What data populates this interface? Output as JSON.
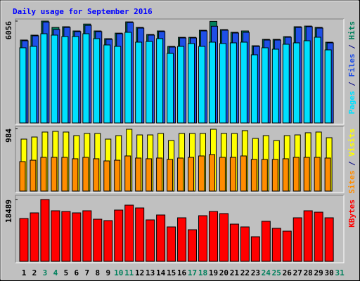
{
  "chart_data": [
    {
      "type": "bar",
      "title": "Daily usage for September 2016",
      "ylim": [
        0,
        6056
      ],
      "yticks": [
        6056
      ],
      "legend_separator": " / ",
      "series": [
        {
          "name": "Hits",
          "color": "#00805c",
          "values": [
            4930,
            5220,
            6056,
            5680,
            5720,
            5470,
            5880,
            5470,
            5010,
            5340,
            6010,
            5680,
            5260,
            5470,
            4550,
            5090,
            5090,
            5510,
            6040,
            5550,
            5390,
            5470,
            4590,
            4970,
            4970,
            5130,
            5720,
            5760,
            5680,
            4800,
            null
          ]
        },
        {
          "name": "Files",
          "color": "#1f4fe6",
          "values": [
            4887,
            5179,
            6000,
            5555,
            5680,
            5430,
            5800,
            5430,
            4970,
            5304,
            5972,
            5638,
            5221,
            5430,
            4511,
            5054,
            5054,
            5472,
            5750,
            5513,
            5346,
            5388,
            4553,
            4928,
            4928,
            5095,
            5680,
            5722,
            5638,
            4761,
            null
          ]
        },
        {
          "name": "Pages",
          "color": "#00e0ff",
          "values": [
            4469,
            4553,
            5304,
            5221,
            5137,
            5137,
            5304,
            5012,
            4636,
            4553,
            5388,
            4803,
            4845,
            5012,
            4135,
            4553,
            4720,
            4553,
            4803,
            4720,
            4761,
            4803,
            4051,
            4469,
            4385,
            4678,
            4761,
            4886,
            5095,
            4343,
            null
          ]
        }
      ]
    },
    {
      "type": "bar",
      "ylim": [
        0,
        984
      ],
      "yticks": [
        984
      ],
      "legend_separator": " / ",
      "series": [
        {
          "name": "Visits",
          "color": "#ffff00",
          "values": [
            818,
            851,
            929,
            940,
            929,
            873,
            907,
            907,
            818,
            873,
            973,
            884,
            884,
            907,
            796,
            907,
            907,
            907,
            973,
            907,
            907,
            951,
            829,
            873,
            796,
            873,
            884,
            918,
            929,
            840,
            null
          ]
        },
        {
          "name": "Sites",
          "color": "#ff8c00",
          "values": [
            464,
            486,
            531,
            531,
            531,
            509,
            531,
            509,
            475,
            486,
            553,
            520,
            509,
            520,
            498,
            520,
            531,
            553,
            575,
            531,
            531,
            553,
            498,
            498,
            498,
            509,
            531,
            531,
            531,
            520,
            null
          ]
        }
      ]
    },
    {
      "type": "bar",
      "ylim": [
        0,
        18489
      ],
      "yticks": [
        18489
      ],
      "legend_separator": " / ",
      "categories": [
        "1",
        "2",
        "3",
        "4",
        "5",
        "6",
        "7",
        "8",
        "9",
        "10",
        "11",
        "12",
        "13",
        "14",
        "15",
        "16",
        "17",
        "18",
        "19",
        "20",
        "21",
        "22",
        "23",
        "24",
        "25",
        "26",
        "27",
        "28",
        "29",
        "30",
        "31"
      ],
      "category_colors": [
        "#000000",
        "#000000",
        "#00805c",
        "#00805c",
        "#000000",
        "#000000",
        "#000000",
        "#000000",
        "#000000",
        "#00805c",
        "#00805c",
        "#000000",
        "#000000",
        "#000000",
        "#000000",
        "#000000",
        "#00805c",
        "#00805c",
        "#000000",
        "#000000",
        "#000000",
        "#000000",
        "#000000",
        "#00805c",
        "#00805c",
        "#000000",
        "#000000",
        "#000000",
        "#000000",
        "#000000",
        "#00805c"
      ],
      "series": [
        {
          "name": "KBytes",
          "color": "#ff0000",
          "values": [
            12816,
            14497,
            18489,
            15127,
            14917,
            14497,
            15127,
            12606,
            12186,
            15337,
            16808,
            15968,
            12396,
            13867,
            10295,
            13026,
            9455,
            13657,
            14917,
            14287,
            11135,
            10295,
            7354,
            11976,
            9875,
            9034,
            13026,
            15127,
            14707,
            13026,
            null
          ]
        }
      ]
    }
  ]
}
